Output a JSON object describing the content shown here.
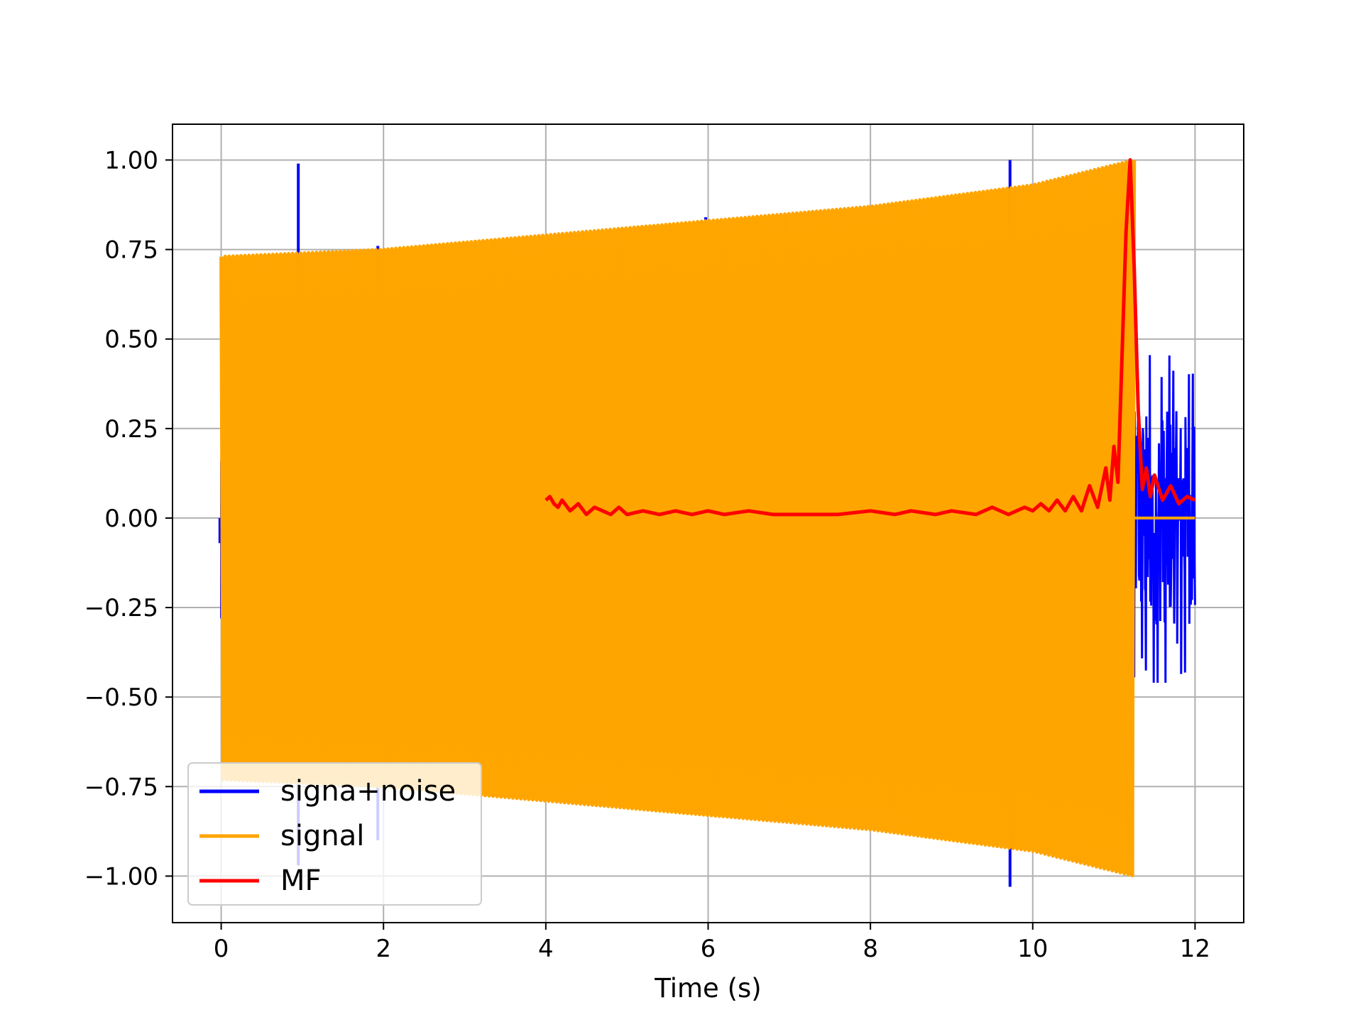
{
  "chart_data": {
    "type": "line",
    "title": "",
    "xlabel": "Time (s)",
    "ylabel": "",
    "xlim": [
      -0.6,
      12.6
    ],
    "ylim": [
      -1.13,
      1.1
    ],
    "xticks": [
      0,
      2,
      4,
      6,
      8,
      10,
      12
    ],
    "xtick_labels": [
      "0",
      "2",
      "4",
      "6",
      "8",
      "10",
      "12"
    ],
    "yticks": [
      1.0,
      0.75,
      0.5,
      0.25,
      0.0,
      -0.25,
      -0.5,
      -0.75,
      -1.0
    ],
    "ytick_labels": [
      "1.00",
      "0.75",
      "0.50",
      "0.25",
      "0.00",
      "−0.25",
      "−0.50",
      "−0.75",
      "−1.00"
    ],
    "grid": true,
    "legend_position": "lower-left",
    "series": [
      {
        "name": "signa+noise",
        "color": "#0000ff",
        "description_points": {
          "spikes": [
            [
              0.95,
              0.99
            ],
            [
              0.95,
              -0.97
            ],
            [
              1.93,
              0.76
            ],
            [
              1.93,
              -0.9
            ],
            [
              5.97,
              0.84
            ],
            [
              9.72,
              1.0
            ],
            [
              9.72,
              -1.03
            ]
          ],
          "noise_region": {
            "x_start": 11.25,
            "x_end": 12.0,
            "y_min": -0.46,
            "y_max": 0.51
          }
        }
      },
      {
        "name": "signal",
        "color": "#ffa500",
        "envelope": {
          "x": [
            0.0,
            2.0,
            4.0,
            6.0,
            8.0,
            10.0,
            11.25
          ],
          "upper": [
            0.73,
            0.75,
            0.79,
            0.83,
            0.87,
            0.93,
            1.0
          ],
          "lower": [
            -0.73,
            -0.75,
            -0.79,
            -0.83,
            -0.87,
            -0.93,
            -1.0
          ]
        },
        "x_start": 0.0,
        "x_end": 11.25,
        "flat_after": {
          "x_start": 11.25,
          "x_end": 12.0,
          "value": 0.0
        }
      },
      {
        "name": "MF",
        "color": "#ff0000",
        "x": [
          4.0,
          4.05,
          4.1,
          4.15,
          4.2,
          4.3,
          4.4,
          4.5,
          4.6,
          4.7,
          4.8,
          4.9,
          5.0,
          5.2,
          5.4,
          5.6,
          5.8,
          6.0,
          6.2,
          6.5,
          6.8,
          7.0,
          7.3,
          7.6,
          8.0,
          8.3,
          8.5,
          8.8,
          9.0,
          9.3,
          9.5,
          9.7,
          9.9,
          10.0,
          10.1,
          10.2,
          10.3,
          10.4,
          10.5,
          10.6,
          10.7,
          10.8,
          10.9,
          10.95,
          11.0,
          11.05,
          11.1,
          11.15,
          11.2,
          11.25,
          11.3,
          11.35,
          11.4,
          11.45,
          11.5,
          11.6,
          11.7,
          11.8,
          11.9,
          12.0
        ],
        "y": [
          0.05,
          0.06,
          0.04,
          0.03,
          0.05,
          0.02,
          0.04,
          0.01,
          0.03,
          0.02,
          0.01,
          0.03,
          0.01,
          0.02,
          0.01,
          0.02,
          0.01,
          0.02,
          0.01,
          0.02,
          0.01,
          0.01,
          0.01,
          0.01,
          0.02,
          0.01,
          0.02,
          0.01,
          0.02,
          0.01,
          0.03,
          0.01,
          0.03,
          0.02,
          0.04,
          0.02,
          0.05,
          0.02,
          0.06,
          0.02,
          0.09,
          0.03,
          0.14,
          0.05,
          0.2,
          0.1,
          0.45,
          0.8,
          1.0,
          0.7,
          0.3,
          0.08,
          0.14,
          0.06,
          0.12,
          0.05,
          0.09,
          0.04,
          0.06,
          0.05
        ]
      }
    ]
  }
}
